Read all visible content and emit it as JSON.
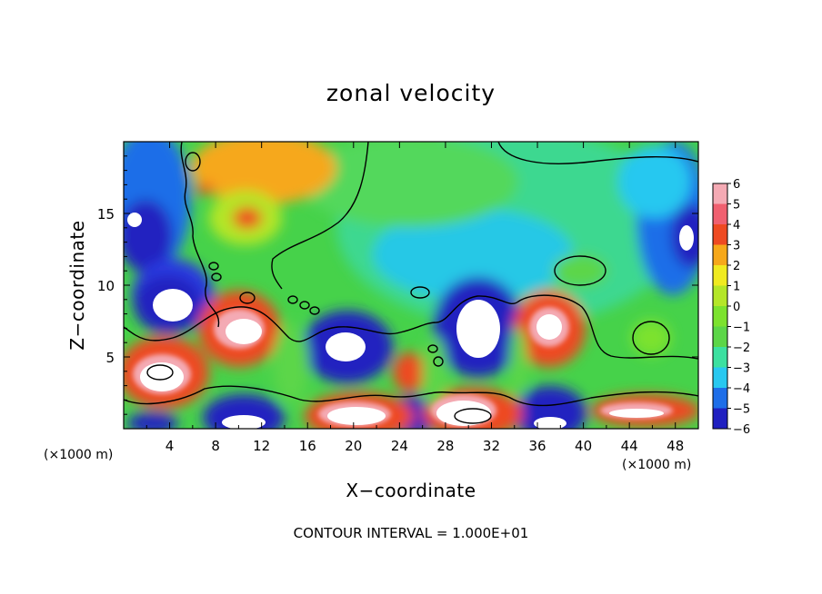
{
  "chart_data": {
    "type": "heatmap",
    "title": "zonal velocity",
    "xlabel": "X−coordinate",
    "ylabel": "Z−coordinate",
    "x_unit": "(×1000 m)",
    "z_unit": "(×1000 m)",
    "xlim": [
      0,
      50
    ],
    "ylim": [
      0,
      20
    ],
    "x_ticks": [
      "4",
      "8",
      "12",
      "16",
      "20",
      "24",
      "28",
      "32",
      "36",
      "40",
      "44",
      "48"
    ],
    "y_ticks": [
      "5",
      "10",
      "15"
    ],
    "colorbar": {
      "levels": [
        "6",
        "5",
        "4",
        "3",
        "2",
        "1",
        "0",
        "−1",
        "−2",
        "−3",
        "−4",
        "−5",
        "−6"
      ],
      "range": [
        -6,
        6
      ],
      "colors": [
        "#7a1fa2",
        "#2020c0",
        "#1e6ee8",
        "#28c8f0",
        "#3ce0a0",
        "#5cd648",
        "#7ce22e",
        "#b4e628",
        "#f0ea20",
        "#f6a81a",
        "#ee4a22",
        "#f06070",
        "#f4aab4"
      ]
    },
    "features": [
      {
        "kind": "positive",
        "x": 10,
        "z": 7.2,
        "value": 6
      },
      {
        "kind": "positive",
        "x": 37.5,
        "z": 7,
        "value": 6
      },
      {
        "kind": "positive",
        "x": 3.5,
        "z": 4.5,
        "value": 6
      },
      {
        "kind": "positive",
        "x": 24.5,
        "z": 3.8,
        "value": 4
      },
      {
        "kind": "positive",
        "x": 11,
        "z": 18.5,
        "value": 3
      },
      {
        "kind": "positive",
        "x": 30.5,
        "z": 1.4,
        "value": 6
      },
      {
        "kind": "negative",
        "x": 5,
        "z": 9,
        "value": -6
      },
      {
        "kind": "negative",
        "x": 19,
        "z": 5.8,
        "value": -6
      },
      {
        "kind": "negative",
        "x": 30.5,
        "z": 7.2,
        "value": -6
      },
      {
        "kind": "negative",
        "x": 1.5,
        "z": 14,
        "value": -5
      },
      {
        "kind": "negative",
        "x": 48.5,
        "z": 13.5,
        "value": -5
      },
      {
        "kind": "negative",
        "x": 39,
        "z": 1.2,
        "value": -6
      }
    ],
    "contour_interval_label": "CONTOUR INTERVAL = 1.000E+01"
  }
}
